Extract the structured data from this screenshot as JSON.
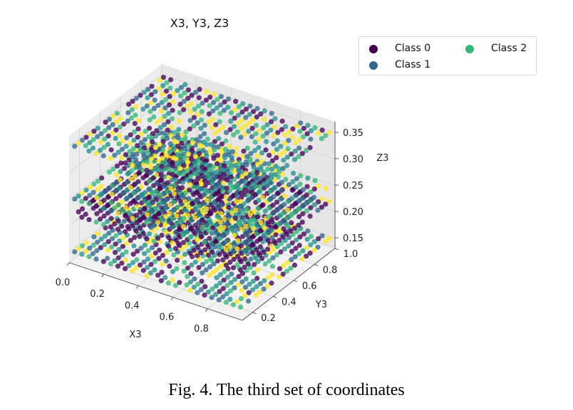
{
  "chart_data": {
    "type": "scatter",
    "projection": "3d",
    "title": "X3, Y3, Z3",
    "xlabel": "X3",
    "ylabel": "Y3",
    "zlabel": "Z3",
    "xlim": [
      0.0,
      1.0
    ],
    "ylim": [
      0.1,
      1.0
    ],
    "zlim": [
      0.13,
      0.37
    ],
    "x_ticks": [
      "0.0",
      "0.2",
      "0.4",
      "0.6",
      "0.8"
    ],
    "y_ticks": [
      "0.2",
      "0.4",
      "0.6",
      "0.8",
      "1.0"
    ],
    "z_ticks": [
      "0.15",
      "0.20",
      "0.25",
      "0.30",
      "0.35"
    ],
    "grid": true,
    "legend_position": "outside top-right",
    "point_layers_z": [
      0.15,
      0.22,
      0.25,
      0.35
    ],
    "grid_resolution": 24,
    "series": [
      {
        "name": "Class 0",
        "color": "#440154"
      },
      {
        "name": "Class 1",
        "color": "#31688e"
      },
      {
        "name": "Class 2",
        "color": "#35b779"
      }
    ],
    "extra_point_colors": [
      "#21918c",
      "#fde725"
    ]
  },
  "caption": "Fig. 4.   The third set of coordinates"
}
